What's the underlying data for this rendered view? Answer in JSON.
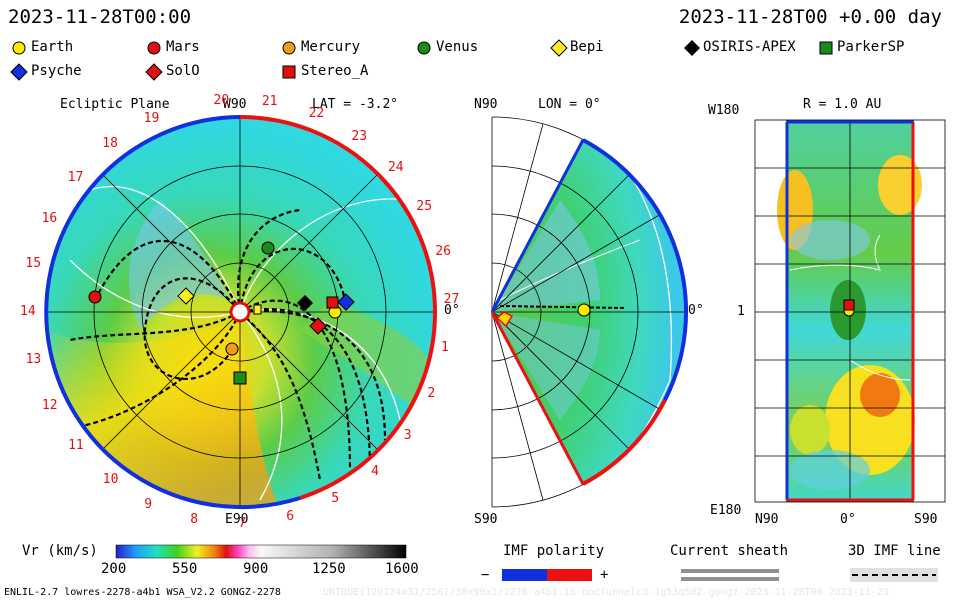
{
  "header": {
    "date_left": "2023-11-28T00:00",
    "date_right": "2023-11-28T00 +0.00 day"
  },
  "legend": {
    "items": [
      {
        "label": "Earth",
        "marker": "circle",
        "color": "#ffeb00"
      },
      {
        "label": "Mars",
        "marker": "circle",
        "color": "#e01010"
      },
      {
        "label": "Mercury",
        "marker": "circle",
        "color": "#f59a1c"
      },
      {
        "label": "Venus",
        "marker": "circle",
        "color": "#1a8a1a"
      },
      {
        "label": "Bepi",
        "marker": "diamond",
        "color": "#ffef20"
      },
      {
        "label": "OSIRIS-APEX",
        "marker": "diamond",
        "color": "#000000"
      },
      {
        "label": "ParkerSP",
        "marker": "square",
        "color": "#1a8a1a"
      },
      {
        "label": "Psyche",
        "marker": "diamond",
        "color": "#1030e0"
      },
      {
        "label": "SolO",
        "marker": "diamond",
        "color": "#e01010"
      },
      {
        "label": "Stereo_A",
        "marker": "square",
        "color": "#e01010"
      }
    ]
  },
  "ecliptic": {
    "title": "Ecliptic Plane",
    "lat": "LAT = -3.2°",
    "top_label": "W90",
    "bottom_label": "E90",
    "right_label": "0°",
    "ticks": [
      "20",
      "21",
      "22",
      "23",
      "24",
      "25",
      "26",
      "27",
      "1",
      "2",
      "3",
      "4",
      "5",
      "6",
      "7",
      "8",
      "9",
      "10",
      "11",
      "12",
      "13",
      "14",
      "15",
      "16",
      "17",
      "18",
      "19"
    ]
  },
  "meridional": {
    "title": "LON = 0°",
    "top_label": "N90",
    "bottom_label": "S90",
    "right_label": "0°"
  },
  "map": {
    "title": "R = 1.0 AU",
    "top_label": "W180",
    "mid_label": "1",
    "bottom_label": "E180",
    "x_labels": [
      "N90",
      "0°",
      "S90"
    ]
  },
  "colorbar": {
    "label": "Vr (km/s)",
    "ticks": [
      "200",
      "550",
      "900",
      "1250",
      "1600"
    ],
    "range": [
      200,
      1600
    ]
  },
  "imf": {
    "title": "IMF polarity",
    "minus": "−",
    "plus": "+",
    "neg_color": "#1030e0",
    "pos_color": "#ee1010"
  },
  "sheath": {
    "title": "Current sheath"
  },
  "imfline": {
    "title": "3D IMF line"
  },
  "footer": {
    "left": "ENLIL-2.7 lowres-2278-a4b1 WSA_V2.2 GONGZ-2278",
    "right": "UNIQUE(129134a31/2561/30x90x1/2278-a4b1.16-nocfunnelcd-1g53q5d2.gongz-2023-11-28T00  2023-11-29"
  }
}
